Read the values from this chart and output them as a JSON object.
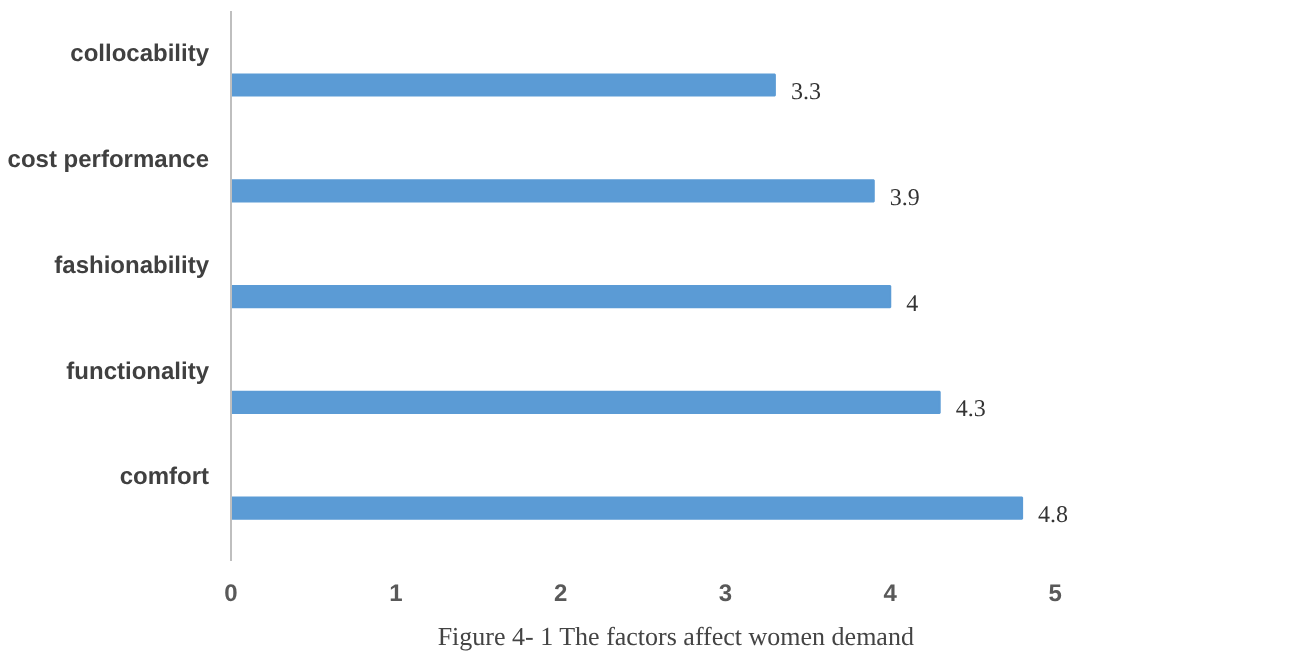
{
  "chart_data": {
    "type": "bar",
    "orientation": "horizontal",
    "title": "Figure 4- 1 The factors affect women demand",
    "categories": [
      "collocability",
      "cost performance",
      "fashionability",
      "functionality",
      "comfort"
    ],
    "values": [
      3.3,
      3.9,
      4,
      4.3,
      4.8
    ],
    "color": "#5b9bd5",
    "xlim": [
      0,
      5
    ],
    "xticks": [
      0,
      1,
      2,
      3,
      4,
      5
    ],
    "data_labels": true,
    "grid": false
  }
}
